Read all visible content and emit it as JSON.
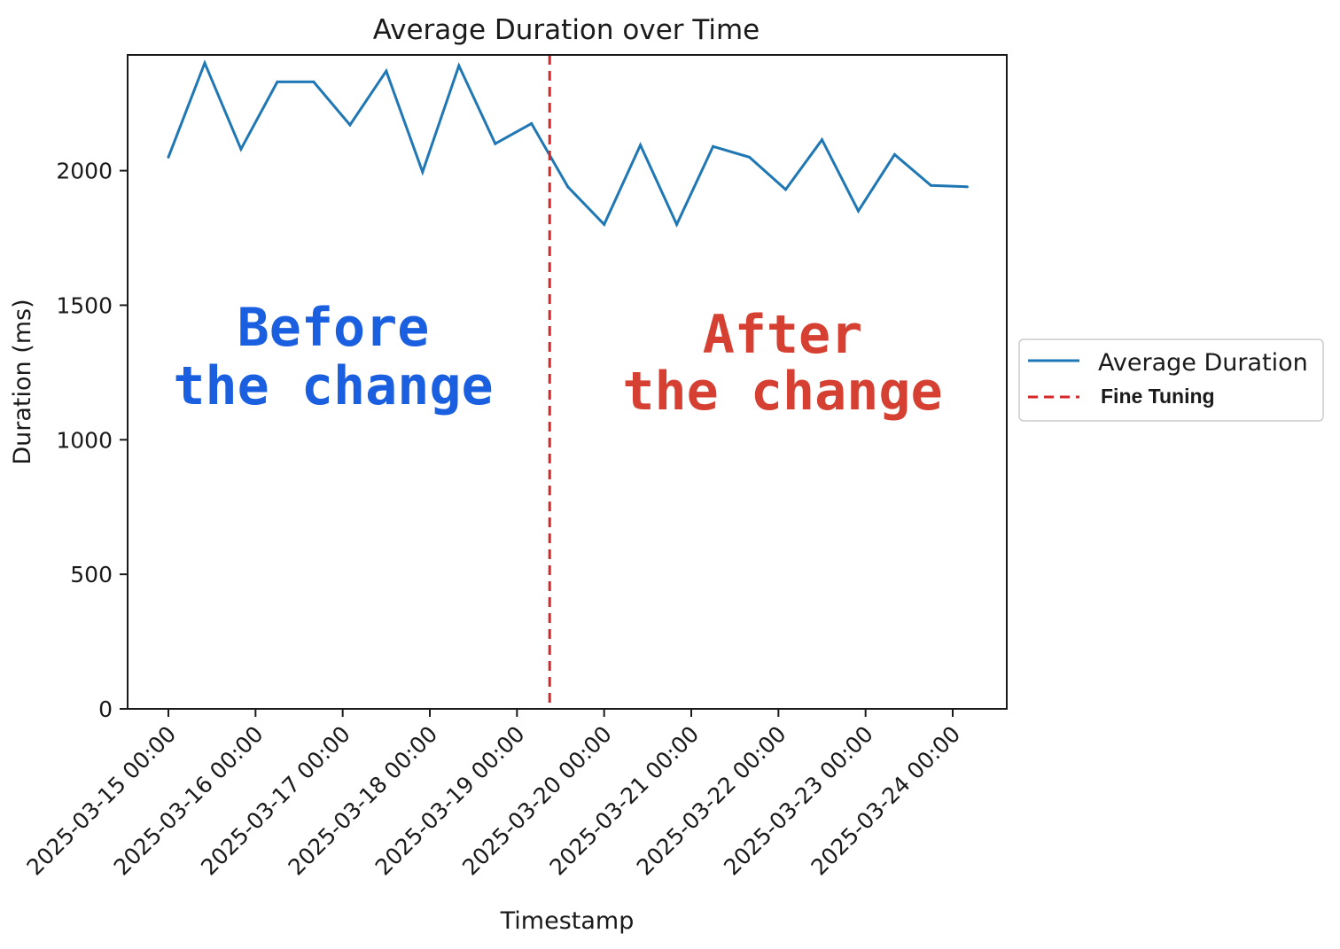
{
  "chart_data": {
    "type": "line",
    "title": "Average Duration over Time",
    "xlabel": "Timestamp",
    "ylabel": "Duration (ms)",
    "ylim": [
      0,
      2430
    ],
    "y_ticks": [
      0,
      500,
      1000,
      1500,
      2000
    ],
    "x_ticks": [
      "2025-03-15 00:00",
      "2025-03-16 00:00",
      "2025-03-17 00:00",
      "2025-03-18 00:00",
      "2025-03-19 00:00",
      "2025-03-20 00:00",
      "2025-03-21 00:00",
      "2025-03-22 00:00",
      "2025-03-23 00:00",
      "2025-03-24 00:00"
    ],
    "grid": false,
    "legend_position": "outside-right",
    "series": [
      {
        "name": "Average Duration",
        "color": "#1f77b4",
        "x": [
          "2025-03-15 00:00",
          "2025-03-15 10:00",
          "2025-03-15 20:00",
          "2025-03-16 06:00",
          "2025-03-16 16:00",
          "2025-03-17 02:00",
          "2025-03-17 12:00",
          "2025-03-17 22:00",
          "2025-03-18 08:00",
          "2025-03-18 18:00",
          "2025-03-19 04:00",
          "2025-03-19 14:00",
          "2025-03-20 00:00",
          "2025-03-20 10:00",
          "2025-03-20 20:00",
          "2025-03-21 06:00",
          "2025-03-21 16:00",
          "2025-03-22 02:00",
          "2025-03-22 12:00",
          "2025-03-22 22:00",
          "2025-03-23 08:00",
          "2025-03-23 18:00",
          "2025-03-24 04:00"
        ],
        "values": [
          2050,
          2400,
          2080,
          2330,
          2330,
          2170,
          2370,
          1995,
          2390,
          2100,
          2175,
          1940,
          1800,
          2095,
          1800,
          2090,
          2050,
          1930,
          2115,
          1850,
          2060,
          1945,
          1940
        ]
      }
    ],
    "vlines": [
      {
        "name": "Fine Tuning",
        "x": "2025-03-19 09:00",
        "color": "#d62728",
        "style": "dashed"
      }
    ],
    "annotations": [
      {
        "lines": [
          "Before",
          "the change"
        ],
        "color": "#1a5fe0"
      },
      {
        "lines": [
          "After",
          "the change"
        ],
        "color": "#d64032"
      }
    ]
  }
}
